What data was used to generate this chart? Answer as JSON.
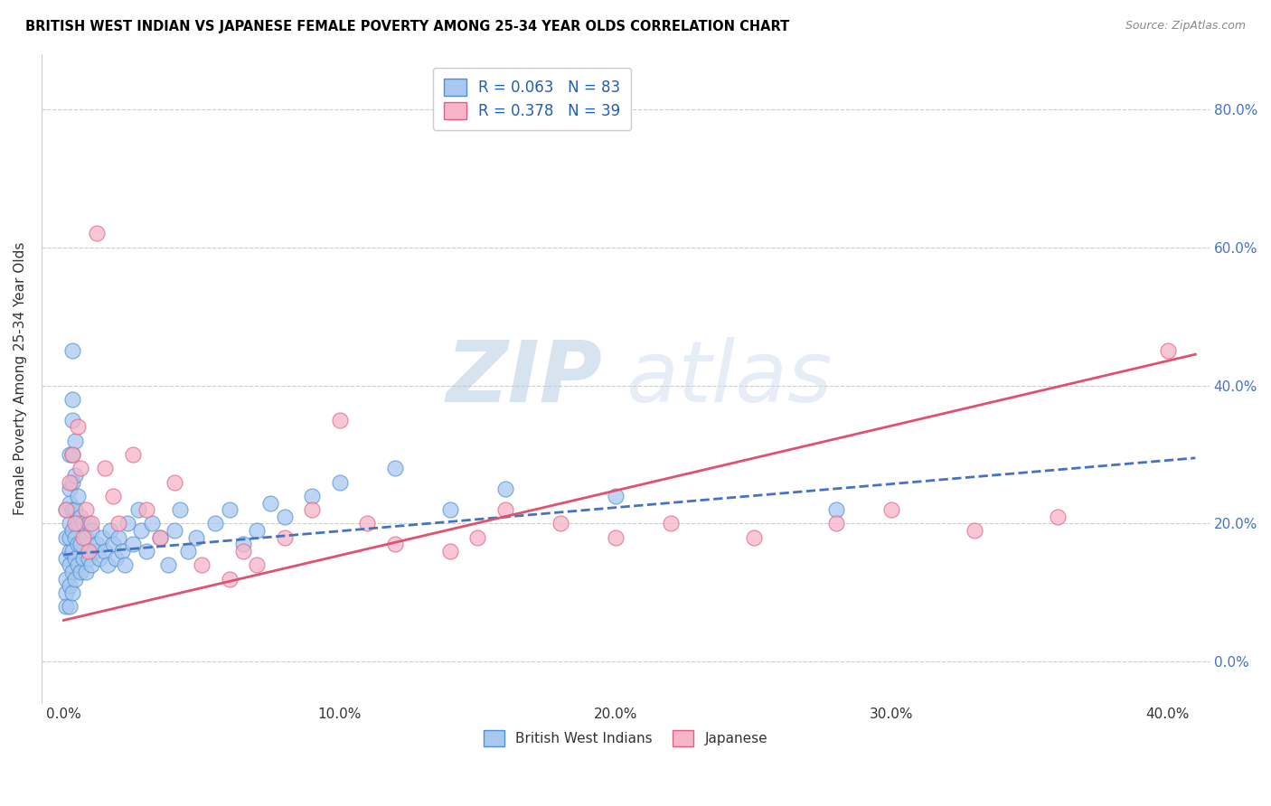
{
  "title": "BRITISH WEST INDIAN VS JAPANESE FEMALE POVERTY AMONG 25-34 YEAR OLDS CORRELATION CHART",
  "source": "Source: ZipAtlas.com",
  "xlabel_tick_vals": [
    0.0,
    0.1,
    0.2,
    0.3,
    0.4
  ],
  "xlabel_ticks": [
    "0.0%",
    "10.0%",
    "20.0%",
    "30.0%",
    "40.0%"
  ],
  "ylabel_tick_vals": [
    0.0,
    0.2,
    0.4,
    0.6,
    0.8
  ],
  "ylabel_ticks": [
    "0.0%",
    "20.0%",
    "40.0%",
    "60.0%",
    "80.0%"
  ],
  "xlim": [
    -0.008,
    0.415
  ],
  "ylim": [
    -0.06,
    0.88
  ],
  "bwi_color": "#a8c8f0",
  "bwi_edge_color": "#5090d0",
  "jap_color": "#f8b4c8",
  "jap_edge_color": "#e06080",
  "bwi_line_color": "#4472c4",
  "jap_line_color": "#e05070",
  "bwi_R": 0.063,
  "bwi_N": 83,
  "jap_R": 0.378,
  "jap_N": 39,
  "watermark_zip": "ZIP",
  "watermark_atlas": "atlas",
  "legend_label_bwi": "British West Indians",
  "legend_label_jap": "Japanese",
  "ylabel": "Female Poverty Among 25-34 Year Olds",
  "bwi_line_x0": 0.0,
  "bwi_line_y0": 0.155,
  "bwi_line_x1": 0.41,
  "bwi_line_y1": 0.295,
  "jap_line_x0": 0.0,
  "jap_line_y0": 0.06,
  "jap_line_x1": 0.41,
  "jap_line_y1": 0.445,
  "bwi_x": [
    0.001,
    0.001,
    0.001,
    0.001,
    0.001,
    0.001,
    0.002,
    0.002,
    0.002,
    0.002,
    0.002,
    0.002,
    0.002,
    0.002,
    0.002,
    0.003,
    0.003,
    0.003,
    0.003,
    0.003,
    0.003,
    0.003,
    0.003,
    0.003,
    0.003,
    0.004,
    0.004,
    0.004,
    0.004,
    0.004,
    0.004,
    0.005,
    0.005,
    0.005,
    0.005,
    0.006,
    0.006,
    0.006,
    0.007,
    0.007,
    0.008,
    0.008,
    0.009,
    0.009,
    0.01,
    0.01,
    0.011,
    0.012,
    0.013,
    0.014,
    0.015,
    0.016,
    0.017,
    0.018,
    0.019,
    0.02,
    0.021,
    0.022,
    0.023,
    0.025,
    0.027,
    0.028,
    0.03,
    0.032,
    0.035,
    0.038,
    0.04,
    0.042,
    0.045,
    0.048,
    0.055,
    0.06,
    0.065,
    0.07,
    0.075,
    0.08,
    0.09,
    0.1,
    0.12,
    0.14,
    0.16,
    0.2,
    0.28
  ],
  "bwi_y": [
    0.12,
    0.15,
    0.18,
    0.1,
    0.22,
    0.08,
    0.14,
    0.16,
    0.2,
    0.25,
    0.08,
    0.11,
    0.18,
    0.23,
    0.3,
    0.1,
    0.13,
    0.16,
    0.19,
    0.22,
    0.26,
    0.3,
    0.35,
    0.38,
    0.45,
    0.12,
    0.15,
    0.18,
    0.22,
    0.27,
    0.32,
    0.14,
    0.17,
    0.2,
    0.24,
    0.13,
    0.17,
    0.21,
    0.15,
    0.2,
    0.13,
    0.18,
    0.15,
    0.2,
    0.14,
    0.19,
    0.16,
    0.17,
    0.15,
    0.18,
    0.16,
    0.14,
    0.19,
    0.17,
    0.15,
    0.18,
    0.16,
    0.14,
    0.2,
    0.17,
    0.22,
    0.19,
    0.16,
    0.2,
    0.18,
    0.14,
    0.19,
    0.22,
    0.16,
    0.18,
    0.2,
    0.22,
    0.17,
    0.19,
    0.23,
    0.21,
    0.24,
    0.26,
    0.28,
    0.22,
    0.25,
    0.24,
    0.22
  ],
  "jap_x": [
    0.001,
    0.002,
    0.003,
    0.004,
    0.005,
    0.006,
    0.007,
    0.008,
    0.009,
    0.01,
    0.012,
    0.015,
    0.018,
    0.02,
    0.025,
    0.03,
    0.035,
    0.04,
    0.05,
    0.06,
    0.065,
    0.07,
    0.08,
    0.09,
    0.1,
    0.11,
    0.12,
    0.14,
    0.15,
    0.16,
    0.18,
    0.2,
    0.22,
    0.25,
    0.28,
    0.3,
    0.33,
    0.36,
    0.4
  ],
  "jap_y": [
    0.22,
    0.26,
    0.3,
    0.2,
    0.34,
    0.28,
    0.18,
    0.22,
    0.16,
    0.2,
    0.62,
    0.28,
    0.24,
    0.2,
    0.3,
    0.22,
    0.18,
    0.26,
    0.14,
    0.12,
    0.16,
    0.14,
    0.18,
    0.22,
    0.35,
    0.2,
    0.17,
    0.16,
    0.18,
    0.22,
    0.2,
    0.18,
    0.2,
    0.18,
    0.2,
    0.22,
    0.19,
    0.21,
    0.45
  ]
}
